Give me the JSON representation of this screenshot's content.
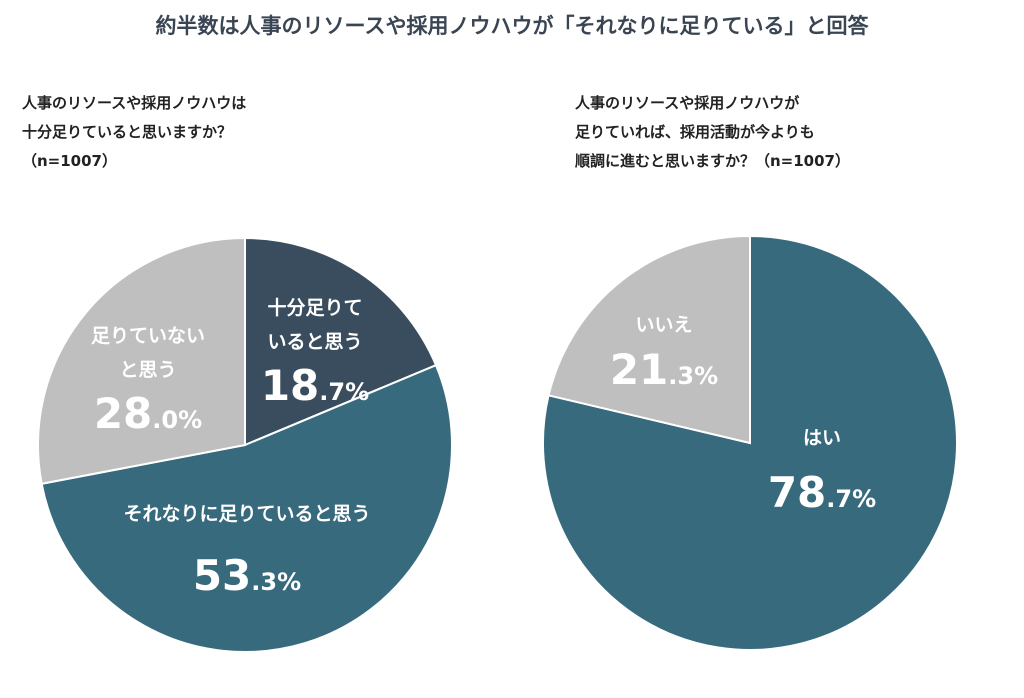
{
  "title": "約半数は人事のリソースや採用ノウハウが「それなりに足りている」と回答",
  "questions": {
    "left": "人事のリソースや採用ノウハウは\n十分足りていると思いますか？\n（n=1007）",
    "right": "人事のリソースや採用ノウハウが\n足りていれば、採用活動が今よりも\n順調に進むと思いますか？（n=1007）"
  },
  "colors": {
    "dark": "#3a4d5e",
    "teal": "#386a7d",
    "gray": "#bfbfbf",
    "white": "#ffffff"
  },
  "chart_data": [
    {
      "type": "pie",
      "title": "人事のリソースや採用ノウハウは十分足りていると思いますか？（n=1007）",
      "categories": [
        "十分足りていると思う",
        "それなりに足りていると思う",
        "足りていないと思う"
      ],
      "values": [
        18.7,
        53.3,
        28.0
      ],
      "label_lines": [
        [
          "十分足りて",
          "いると思う"
        ],
        [
          "それなりに足りていると思う"
        ],
        [
          "足りていない",
          "と思う"
        ]
      ],
      "value_int": [
        "18",
        "53",
        "28"
      ],
      "value_dec": [
        ".7%",
        ".3%",
        ".0%"
      ],
      "colors": [
        "#3a4d5e",
        "#386a7d",
        "#bfbfbf"
      ]
    },
    {
      "type": "pie",
      "title": "人事のリソースや採用ノウハウが足りていれば、採用活動が今よりも順調に進むと思いますか？（n=1007）",
      "categories": [
        "はい",
        "いいえ"
      ],
      "values": [
        78.7,
        21.3
      ],
      "label_lines": [
        [
          "はい"
        ],
        [
          "いいえ"
        ]
      ],
      "value_int": [
        "78",
        "21"
      ],
      "value_dec": [
        ".7%",
        ".3%"
      ],
      "colors": [
        "#386a7d",
        "#bfbfbf"
      ]
    }
  ]
}
